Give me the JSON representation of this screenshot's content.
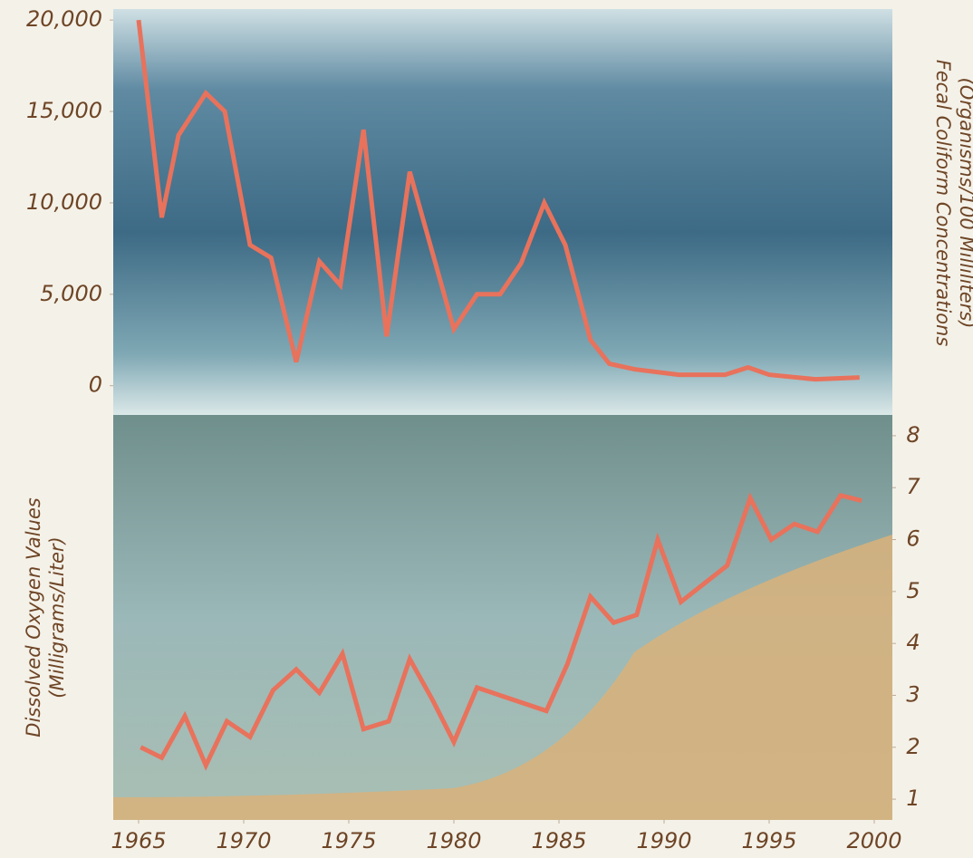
{
  "chart_data": [
    {
      "type": "line",
      "ylabel": [
        "Fecal Coliform Concentrations",
        "(Organisms/100 Milliliters)"
      ],
      "yaxis_side": "left",
      "label_side": "right",
      "xlim": [
        1965,
        2000
      ],
      "ylim": [
        -1600,
        20600
      ],
      "yticks": [
        0,
        {
          "value": 5000,
          "label": "5,000"
        },
        {
          "value": 10000,
          "label": "10,000"
        },
        {
          "value": 15000,
          "label": "15,000"
        },
        {
          "value": 20000,
          "label": "20,000"
        }
      ],
      "series": [
        {
          "color": "#e8725c",
          "x": [
            1965.0,
            1966.1,
            1966.9,
            1968.2,
            1969.1,
            1970.3,
            1971.3,
            1972.5,
            1973.6,
            1974.6,
            1975.7,
            1976.8,
            1977.9,
            1979.0,
            1980.0,
            1981.1,
            1982.2,
            1983.2,
            1984.3,
            1985.3,
            1986.5,
            1987.4,
            1988.6,
            1990.7,
            1992.9,
            1994.0,
            1995.0,
            1997.2,
            1999.3
          ],
          "values": [
            20000,
            9200,
            13700,
            16000,
            15000,
            7700,
            7000,
            1300,
            6800,
            5500,
            14000,
            2700,
            11700,
            7200,
            3100,
            5000,
            5000,
            6700,
            10000,
            7700,
            2500,
            1200,
            900,
            600,
            600,
            1000,
            600,
            350,
            450
          ]
        }
      ]
    },
    {
      "type": "line",
      "ylabel": [
        "Dissolved Oxygen Values",
        "(Milligrams/Liter)"
      ],
      "yaxis_side": "right",
      "label_side": "left",
      "xlim": [
        1965,
        2000
      ],
      "ylim": [
        0.6,
        8.4
      ],
      "yticks": [
        1,
        2,
        3,
        4,
        5,
        6,
        7,
        8
      ],
      "xticks": [
        1965,
        1970,
        1975,
        1980,
        1985,
        1990,
        1995,
        2000
      ],
      "series": [
        {
          "color": "#e8725c",
          "x": [
            1965.1,
            1966.1,
            1967.2,
            1968.2,
            1969.2,
            1970.3,
            1971.4,
            1972.5,
            1973.6,
            1974.7,
            1975.7,
            1976.9,
            1977.9,
            1979.0,
            1980.0,
            1981.1,
            1982.2,
            1984.4,
            1985.4,
            1986.5,
            1987.6,
            1988.7,
            1989.7,
            1990.8,
            1991.9,
            1993.0,
            1994.1,
            1995.1,
            1996.2,
            1997.3,
            1998.4,
            1999.4
          ],
          "values": [
            2.0,
            1.8,
            2.6,
            1.65,
            2.5,
            2.2,
            3.1,
            3.5,
            3.05,
            3.8,
            2.35,
            2.5,
            3.7,
            2.9,
            2.1,
            3.15,
            3.0,
            2.7,
            3.6,
            4.9,
            4.4,
            4.55,
            6.0,
            4.8,
            5.15,
            5.5,
            6.8,
            6.0,
            6.3,
            6.15,
            6.85,
            6.75
          ]
        }
      ]
    }
  ]
}
